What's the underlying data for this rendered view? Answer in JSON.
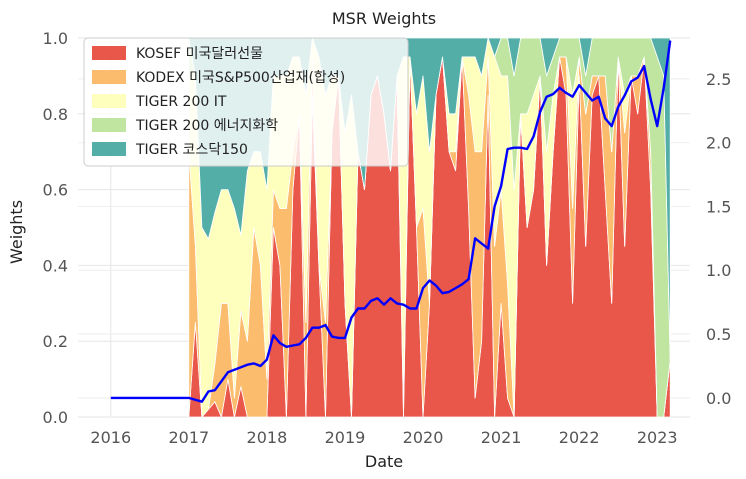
{
  "chart_data": {
    "type": "area",
    "title": "MSR Weights",
    "xlabel": "Date",
    "ylabel": "Weights",
    "x_ticks": [
      "2016",
      "2017",
      "2018",
      "2019",
      "2020",
      "2021",
      "2022",
      "2023"
    ],
    "y_ticks": [
      "0.0",
      "0.2",
      "0.4",
      "0.6",
      "0.8",
      "1.0"
    ],
    "y2_ticks": [
      "0.0",
      "0.5",
      "1.0",
      "1.5",
      "2.0",
      "2.5"
    ],
    "ylim": [
      0,
      1.0
    ],
    "y2lim": [
      -0.15,
      2.82
    ],
    "grid": true,
    "legend_position": "top-left",
    "x": [
      "2017-01",
      "2017-02",
      "2017-03",
      "2017-04",
      "2017-05",
      "2017-06",
      "2017-07",
      "2017-08",
      "2017-09",
      "2017-10",
      "2017-11",
      "2017-12",
      "2018-01",
      "2018-02",
      "2018-03",
      "2018-04",
      "2018-05",
      "2018-06",
      "2018-07",
      "2018-08",
      "2018-09",
      "2018-10",
      "2018-11",
      "2018-12",
      "2019-01",
      "2019-02",
      "2019-03",
      "2019-04",
      "2019-05",
      "2019-06",
      "2019-07",
      "2019-08",
      "2019-09",
      "2019-10",
      "2019-11",
      "2019-12",
      "2020-01",
      "2020-02",
      "2020-03",
      "2020-04",
      "2020-05",
      "2020-06",
      "2020-07",
      "2020-08",
      "2020-09",
      "2020-10",
      "2020-11",
      "2020-12",
      "2021-01",
      "2021-02",
      "2021-03",
      "2021-04",
      "2021-05",
      "2021-06",
      "2021-07",
      "2021-08",
      "2021-09",
      "2021-10",
      "2021-11",
      "2021-12",
      "2022-01",
      "2022-02",
      "2022-03",
      "2022-04",
      "2022-05",
      "2022-06",
      "2022-07",
      "2022-08",
      "2022-09",
      "2022-10",
      "2022-11",
      "2022-12",
      "2023-01",
      "2023-02",
      "2023-03"
    ],
    "series": [
      {
        "name": "KOSEF 미국달러선물",
        "color": "#e8574a",
        "values": [
          0.0,
          0.25,
          0.0,
          0.02,
          0.04,
          0.0,
          0.1,
          0.0,
          0.08,
          0.0,
          0.0,
          0.0,
          0.0,
          0.5,
          0.4,
          0.0,
          0.6,
          0.8,
          0.0,
          0.85,
          0.4,
          0.0,
          0.75,
          0.9,
          0.3,
          0.0,
          0.7,
          0.6,
          0.85,
          0.9,
          0.8,
          0.65,
          0.9,
          0.0,
          0.95,
          0.5,
          0.0,
          0.3,
          0.85,
          0.95,
          0.7,
          0.65,
          0.95,
          0.55,
          0.05,
          0.2,
          0.85,
          0.0,
          0.3,
          0.05,
          0.0,
          0.8,
          0.5,
          0.6,
          0.9,
          0.4,
          0.7,
          0.95,
          0.85,
          0.3,
          0.9,
          0.45,
          0.85,
          0.9,
          0.6,
          0.3,
          0.95,
          0.45,
          0.9,
          0.8,
          0.95,
          0.6,
          0.0,
          0.0,
          0.15
        ]
      },
      {
        "name": "KODEX 미국S&P500산업재(합성)",
        "color": "#fcbc6e",
        "values": [
          0.7,
          0.2,
          0.0,
          0.0,
          0.1,
          0.3,
          0.2,
          0.05,
          0.2,
          0.2,
          0.5,
          0.4,
          0.1,
          0.1,
          0.15,
          0.55,
          0.1,
          0.0,
          0.25,
          0.1,
          0.0,
          0.25,
          0.0,
          0.0,
          0.0,
          0.0,
          0.0,
          0.0,
          0.0,
          0.0,
          0.0,
          0.0,
          0.0,
          0.05,
          0.0,
          0.0,
          0.55,
          0.0,
          0.0,
          0.0,
          0.0,
          0.05,
          0.0,
          0.3,
          0.65,
          0.5,
          0.1,
          0.45,
          0.3,
          0.3,
          0.0,
          0.0,
          0.0,
          0.0,
          0.0,
          0.0,
          0.0,
          0.0,
          0.1,
          0.25,
          0.05,
          0.35,
          0.05,
          0.0,
          0.3,
          0.4,
          0.0,
          0.3,
          0.0,
          0.1,
          0.0,
          0.1,
          0.0,
          0.0,
          0.0
        ]
      },
      {
        "name": "TIGER 200 IT",
        "color": "#fefebd",
        "values": [
          0.2,
          0.45,
          0.5,
          0.45,
          0.4,
          0.3,
          0.3,
          0.5,
          0.2,
          0.45,
          0.2,
          0.3,
          0.5,
          0.3,
          0.35,
          0.35,
          0.25,
          0.15,
          0.6,
          0.05,
          0.55,
          0.6,
          0.15,
          0.0,
          0.45,
          0.85,
          0.0,
          0.0,
          0.0,
          0.0,
          0.0,
          0.0,
          0.0,
          0.9,
          0.0,
          0.3,
          0.35,
          0.4,
          0.0,
          0.0,
          0.1,
          0.1,
          0.0,
          0.1,
          0.25,
          0.2,
          0.05,
          0.5,
          0.3,
          0.55,
          0.6,
          0.0,
          0.3,
          0.25,
          0.0,
          0.3,
          0.15,
          0.0,
          0.0,
          0.3,
          0.0,
          0.0,
          0.0,
          0.0,
          0.0,
          0.0,
          0.0,
          0.1,
          0.0,
          0.0,
          0.0,
          0.0,
          0.0,
          0.0,
          0.0
        ]
      },
      {
        "name": "TIGER 200 에너지화학",
        "color": "#bfe5a0",
        "values": [
          0.1,
          0.0,
          0.0,
          0.0,
          0.0,
          0.0,
          0.0,
          0.0,
          0.0,
          0.0,
          0.0,
          0.0,
          0.0,
          0.0,
          0.0,
          0.0,
          0.0,
          0.0,
          0.0,
          0.0,
          0.0,
          0.0,
          0.0,
          0.0,
          0.0,
          0.0,
          0.0,
          0.0,
          0.0,
          0.0,
          0.0,
          0.0,
          0.0,
          0.0,
          0.0,
          0.0,
          0.0,
          0.0,
          0.0,
          0.0,
          0.0,
          0.0,
          0.0,
          0.0,
          0.0,
          0.0,
          0.0,
          0.0,
          0.1,
          0.1,
          0.3,
          0.2,
          0.2,
          0.15,
          0.1,
          0.2,
          0.1,
          0.05,
          0.05,
          0.15,
          0.05,
          0.1,
          0.1,
          0.1,
          0.1,
          0.3,
          0.05,
          0.15,
          0.1,
          0.1,
          0.05,
          0.3,
          0.95,
          0.9,
          0.0
        ]
      },
      {
        "name": "TIGER 코스닥150",
        "color": "#53aea8",
        "values": [
          0.0,
          0.1,
          0.5,
          0.53,
          0.46,
          0.4,
          0.4,
          0.45,
          0.52,
          0.35,
          0.3,
          0.3,
          0.4,
          0.1,
          0.1,
          0.1,
          0.05,
          0.05,
          0.15,
          0.0,
          0.05,
          0.15,
          0.1,
          0.1,
          0.25,
          0.15,
          0.3,
          0.4,
          0.15,
          0.1,
          0.2,
          0.35,
          0.1,
          0.05,
          0.05,
          0.2,
          0.1,
          0.3,
          0.15,
          0.05,
          0.2,
          0.2,
          0.05,
          0.05,
          0.05,
          0.1,
          0.0,
          0.05,
          0.0,
          0.0,
          0.1,
          0.0,
          0.0,
          0.0,
          0.0,
          0.1,
          0.05,
          0.0,
          0.0,
          0.0,
          0.0,
          0.1,
          0.0,
          0.0,
          0.0,
          0.0,
          0.0,
          0.0,
          0.0,
          0.0,
          0.0,
          0.0,
          0.05,
          0.1,
          0.85
        ]
      }
    ],
    "line": {
      "axis": "right",
      "color": "#0000ff",
      "x": [
        "2016-01",
        "2016-07",
        "2017-01",
        "2017-03",
        "2017-04",
        "2017-05",
        "2017-06",
        "2017-07",
        "2017-08",
        "2017-09",
        "2017-10",
        "2017-11",
        "2017-12",
        "2018-01",
        "2018-02",
        "2018-03",
        "2018-04",
        "2018-05",
        "2018-06",
        "2018-07",
        "2018-08",
        "2018-09",
        "2018-10",
        "2018-11",
        "2018-12",
        "2019-01",
        "2019-02",
        "2019-03",
        "2019-04",
        "2019-05",
        "2019-06",
        "2019-07",
        "2019-08",
        "2019-09",
        "2019-10",
        "2019-11",
        "2019-12",
        "2020-01",
        "2020-02",
        "2020-03",
        "2020-04",
        "2020-05",
        "2020-06",
        "2020-07",
        "2020-08",
        "2020-09",
        "2020-10",
        "2020-11",
        "2020-12",
        "2021-01",
        "2021-02",
        "2021-03",
        "2021-04",
        "2021-05",
        "2021-06",
        "2021-07",
        "2021-08",
        "2021-09",
        "2021-10",
        "2021-11",
        "2021-12",
        "2022-01",
        "2022-02",
        "2022-03",
        "2022-04",
        "2022-05",
        "2022-06",
        "2022-07",
        "2022-08",
        "2022-09",
        "2022-10",
        "2022-11",
        "2022-12",
        "2023-01",
        "2023-02",
        "2023-03"
      ],
      "values": [
        0.0,
        0.0,
        0.0,
        -0.03,
        0.05,
        0.06,
        0.13,
        0.2,
        0.22,
        0.24,
        0.26,
        0.27,
        0.25,
        0.3,
        0.49,
        0.43,
        0.4,
        0.41,
        0.42,
        0.47,
        0.55,
        0.55,
        0.57,
        0.48,
        0.47,
        0.47,
        0.63,
        0.7,
        0.7,
        0.76,
        0.78,
        0.73,
        0.78,
        0.74,
        0.73,
        0.7,
        0.7,
        0.86,
        0.92,
        0.88,
        0.82,
        0.83,
        0.86,
        0.89,
        0.93,
        1.25,
        1.21,
        1.17,
        1.5,
        1.66,
        1.95,
        1.96,
        1.96,
        1.95,
        2.05,
        2.24,
        2.36,
        2.38,
        2.43,
        2.39,
        2.36,
        2.45,
        2.39,
        2.33,
        2.36,
        2.19,
        2.13,
        2.28,
        2.37,
        2.48,
        2.51,
        2.6,
        2.34,
        2.13,
        2.43,
        2.8
      ]
    }
  }
}
